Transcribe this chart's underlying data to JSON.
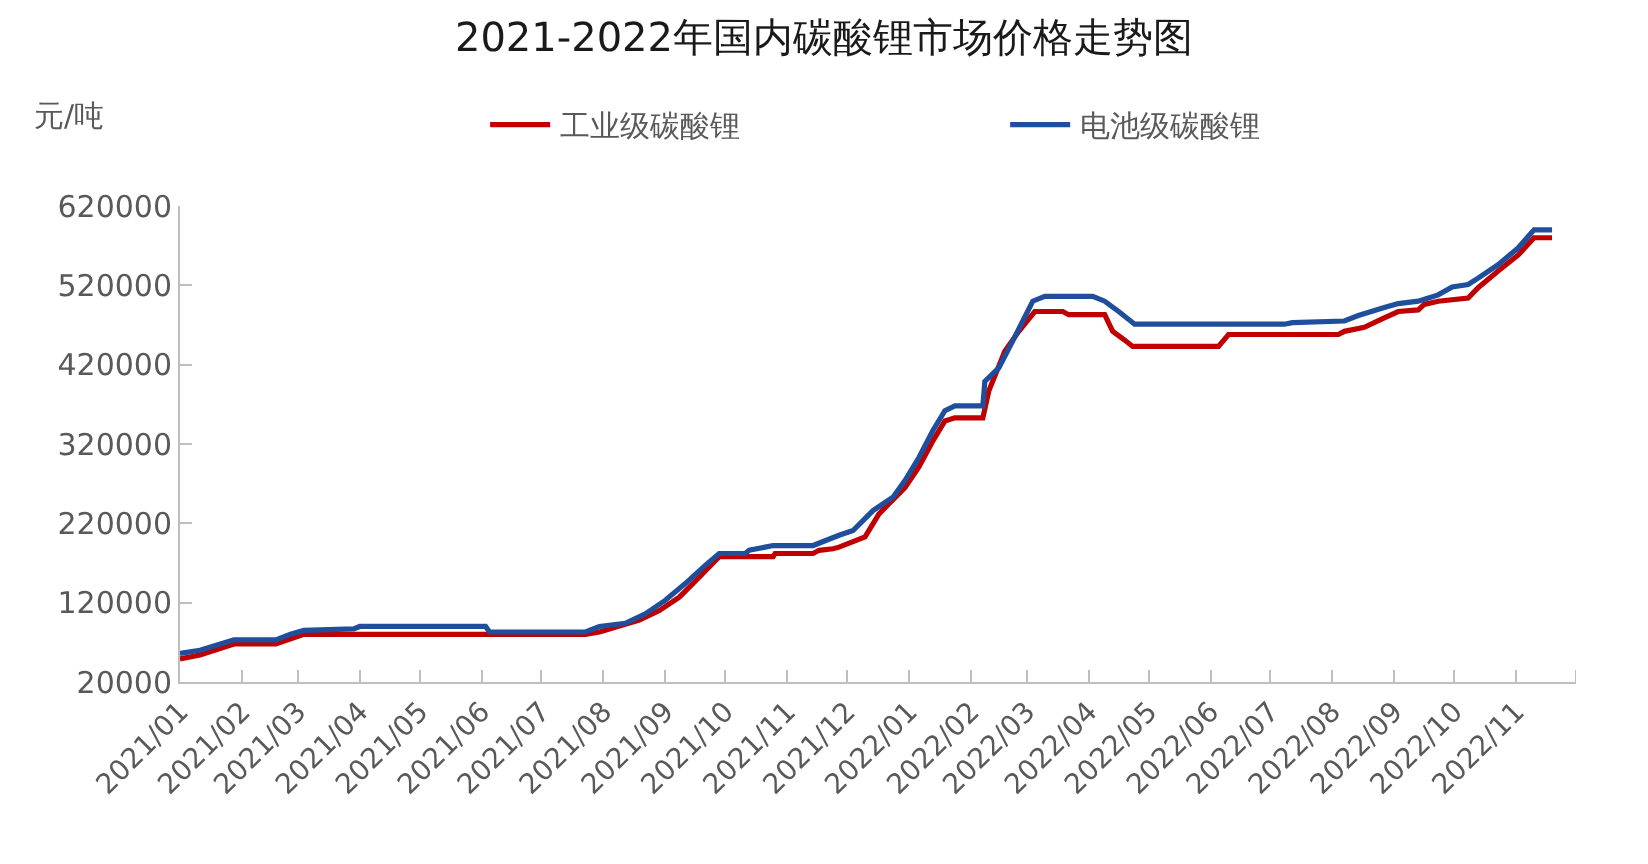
{
  "chart_data": {
    "type": "line",
    "title": "2021-2022年国内碳酸锂市场价格走势图",
    "ylabel": "元/吨",
    "series": [
      {
        "name": "工业级碳酸锂",
        "color": "#c00000",
        "x": [
          "2021-01-01",
          "2021-01-11",
          "2021-01-28",
          "2021-02-18",
          "2021-03-04",
          "2021-07-23",
          "2021-07-30",
          "2021-08-19",
          "2021-08-29",
          "2021-09-08",
          "2021-09-18",
          "2021-09-28",
          "2021-10-25",
          "2021-10-26",
          "2021-11-14",
          "2021-11-17",
          "2021-11-24",
          "2021-11-27",
          "2021-12-10",
          "2021-12-17",
          "2021-12-30",
          "2022-01-06",
          "2022-01-13",
          "2022-01-19",
          "2022-01-24",
          "2022-02-07",
          "2022-02-10",
          "2022-02-18",
          "2022-02-25",
          "2022-03-05",
          "2022-03-19",
          "2022-03-22",
          "2022-04-09",
          "2022-04-13",
          "2022-04-19",
          "2022-04-23",
          "2022-06-05",
          "2022-06-10",
          "2022-08-04",
          "2022-08-07",
          "2022-08-17",
          "2022-08-27",
          "2022-09-03",
          "2022-09-13",
          "2022-09-16",
          "2022-09-23",
          "2022-10-08",
          "2022-10-13",
          "2022-10-23",
          "2022-11-02",
          "2022-11-10",
          "2022-11-19"
        ],
        "values": [
          49000,
          54000,
          68000,
          68000,
          80000,
          80000,
          83000,
          98000,
          110000,
          127000,
          152000,
          178000,
          178000,
          182000,
          182000,
          186000,
          188000,
          190000,
          203000,
          232000,
          265000,
          291000,
          324000,
          349000,
          353000,
          353000,
          387000,
          437000,
          462000,
          487000,
          487000,
          483000,
          483000,
          462000,
          451000,
          443000,
          443000,
          458000,
          458000,
          462000,
          467000,
          479000,
          487000,
          489000,
          496000,
          500000,
          504000,
          517000,
          538000,
          558000,
          580000,
          580000
        ]
      },
      {
        "name": "电池级碳酸锂",
        "color": "#1f4e9c",
        "x": [
          "2021-01-01",
          "2021-01-11",
          "2021-01-28",
          "2021-02-18",
          "2021-02-25",
          "2021-03-04",
          "2021-03-29",
          "2021-04-01",
          "2021-06-03",
          "2021-06-05",
          "2021-07-23",
          "2021-07-30",
          "2021-08-12",
          "2021-08-22",
          "2021-09-01",
          "2021-09-11",
          "2021-09-21",
          "2021-09-28",
          "2021-10-11",
          "2021-10-13",
          "2021-10-25",
          "2021-11-14",
          "2021-11-20",
          "2021-11-27",
          "2021-12-04",
          "2021-12-14",
          "2021-12-24",
          "2021-12-30",
          "2022-01-06",
          "2022-01-13",
          "2022-01-19",
          "2022-01-24",
          "2022-02-07",
          "2022-02-08",
          "2022-02-15",
          "2022-02-22",
          "2022-02-27",
          "2022-03-04",
          "2022-03-10",
          "2022-04-03",
          "2022-04-09",
          "2022-04-16",
          "2022-04-24",
          "2022-07-08",
          "2022-07-12",
          "2022-08-07",
          "2022-08-14",
          "2022-08-27",
          "2022-09-03",
          "2022-09-13",
          "2022-09-23",
          "2022-09-30",
          "2022-10-08",
          "2022-10-13",
          "2022-10-23",
          "2022-11-02",
          "2022-11-10",
          "2022-11-19"
        ],
        "values": [
          56000,
          60000,
          73000,
          73000,
          80000,
          85000,
          87000,
          90000,
          90000,
          83000,
          83000,
          90000,
          94000,
          106000,
          123000,
          144000,
          167000,
          182000,
          182000,
          186000,
          192000,
          192000,
          198000,
          205000,
          211000,
          236000,
          253000,
          274000,
          303000,
          337000,
          362000,
          368000,
          368000,
          399000,
          416000,
          450000,
          475000,
          500000,
          506000,
          506000,
          500000,
          487000,
          471000,
          471000,
          473000,
          475000,
          482000,
          492000,
          497000,
          500000,
          508000,
          518000,
          521000,
          529000,
          546000,
          567000,
          590000,
          590000
        ]
      }
    ],
    "xlim": [
      "2021-01-01",
      "2022-12-01"
    ],
    "xticks": [
      {
        "value": "2021-01-01",
        "label": "2021/01"
      },
      {
        "value": "2021-02-01",
        "label": "2021/02"
      },
      {
        "value": "2021-03-01",
        "label": "2021/03"
      },
      {
        "value": "2021-04-01",
        "label": "2021/04"
      },
      {
        "value": "2021-05-01",
        "label": "2021/05"
      },
      {
        "value": "2021-06-01",
        "label": "2021/06"
      },
      {
        "value": "2021-07-01",
        "label": "2021/07"
      },
      {
        "value": "2021-08-01",
        "label": "2021/08"
      },
      {
        "value": "2021-09-01",
        "label": "2021/09"
      },
      {
        "value": "2021-10-01",
        "label": "2021/10"
      },
      {
        "value": "2021-11-01",
        "label": "2021/11"
      },
      {
        "value": "2021-12-01",
        "label": "2021/12"
      },
      {
        "value": "2022-01-01",
        "label": "2022/01"
      },
      {
        "value": "2022-02-01",
        "label": "2022/02"
      },
      {
        "value": "2022-03-01",
        "label": "2022/03"
      },
      {
        "value": "2022-04-01",
        "label": "2022/04"
      },
      {
        "value": "2022-05-01",
        "label": "2022/05"
      },
      {
        "value": "2022-06-01",
        "label": "2022/06"
      },
      {
        "value": "2022-07-01",
        "label": "2022/07"
      },
      {
        "value": "2022-08-01",
        "label": "2022/08"
      },
      {
        "value": "2022-09-01",
        "label": "2022/09"
      },
      {
        "value": "2022-10-01",
        "label": "2022/10"
      },
      {
        "value": "2022-11-01",
        "label": "2022/11"
      },
      {
        "value": "2022-12-01",
        "label": null
      }
    ],
    "ylim": [
      20000,
      620000
    ],
    "yticks": [
      20000,
      120000,
      220000,
      320000,
      420000,
      520000,
      620000
    ],
    "legend": "top",
    "grid": false,
    "line_style": "solid"
  }
}
